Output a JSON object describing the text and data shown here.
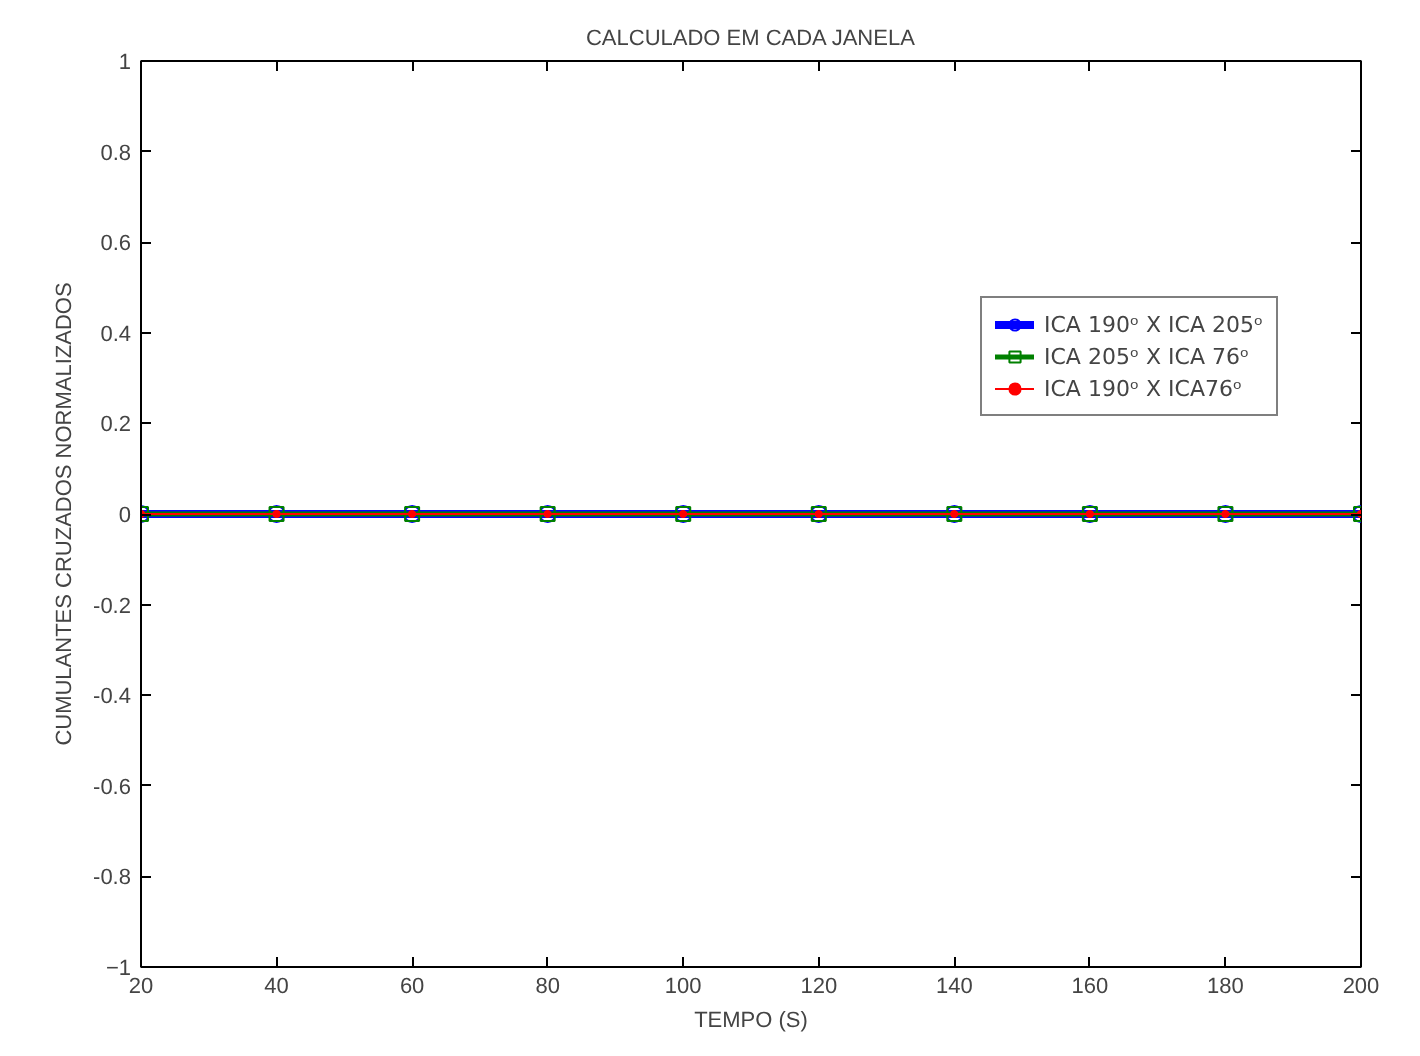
{
  "chart_data": {
    "type": "line",
    "title": "CALCULADO EM CADA JANELA",
    "xlabel": "TEMPO (S)",
    "ylabel": "CUMULANTES CRUZADOS NORMALIZADOS",
    "x": [
      20,
      40,
      60,
      80,
      100,
      120,
      140,
      160,
      180,
      200
    ],
    "series": [
      {
        "name": "ICA 190ᵒ X ICA 205ᵒ",
        "color": "#0000ff",
        "marker": "circle",
        "values": [
          0,
          0,
          0,
          0,
          0,
          0,
          0,
          0,
          0,
          0
        ]
      },
      {
        "name": "ICA 205ᵒ X ICA 76ᵒ",
        "color": "#008000",
        "marker": "square",
        "values": [
          0,
          0,
          0,
          0,
          0,
          0,
          0,
          0,
          0,
          0
        ]
      },
      {
        "name": "ICA 190ᵒ X ICA76ᵒ",
        "color": "#ff0000",
        "marker": "dot",
        "values": [
          0,
          0,
          0,
          0,
          0,
          0,
          0,
          0,
          0,
          0
        ]
      }
    ],
    "xlim": [
      20,
      200
    ],
    "xticks": [
      20,
      40,
      60,
      80,
      100,
      120,
      140,
      160,
      180,
      200
    ],
    "ylim": [
      -1,
      1
    ],
    "yticks": [
      {
        "value": -1,
        "label": "−1"
      },
      -0.8,
      -0.6,
      -0.4,
      -0.2,
      0,
      0.2,
      0.4,
      0.6,
      0.8,
      1
    ],
    "grid": false,
    "legend": "right",
    "line_style": "solid"
  }
}
